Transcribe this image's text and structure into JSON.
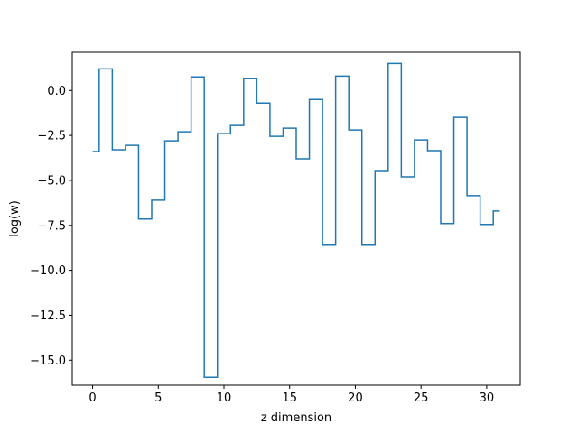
{
  "chart_data": {
    "type": "line",
    "drawstyle": "steps-mid",
    "title": "",
    "xlabel": "z dimension",
    "ylabel": "log(w)",
    "xlim": [
      -1.55,
      32.55
    ],
    "ylim": [
      -16.39,
      2.12
    ],
    "xticks": [
      0,
      5,
      10,
      15,
      20,
      25,
      30
    ],
    "xtick_labels": [
      "0",
      "5",
      "10",
      "15",
      "20",
      "25",
      "30"
    ],
    "yticks": [
      0.0,
      -2.5,
      -5.0,
      -7.5,
      -10.0,
      -12.5,
      -15.0
    ],
    "ytick_labels": [
      "0.0",
      "−2.5",
      "−5.0",
      "−7.5",
      "−10.0",
      "−12.5",
      "−15.0"
    ],
    "grid": false,
    "legend": "none",
    "series": [
      {
        "color": "#1f77b4",
        "x": [
          0,
          1,
          2,
          3,
          4,
          5,
          6,
          7,
          8,
          9,
          10,
          11,
          12,
          13,
          14,
          15,
          16,
          17,
          18,
          19,
          20,
          21,
          22,
          23,
          24,
          25,
          26,
          27,
          28,
          29,
          30,
          31
        ],
        "y": [
          -3.4,
          1.2,
          -3.3,
          -3.05,
          -7.15,
          -6.1,
          -2.8,
          -2.3,
          0.75,
          -15.95,
          -2.4,
          -1.95,
          0.65,
          -0.7,
          -2.55,
          -2.1,
          -3.8,
          -0.5,
          -8.6,
          0.8,
          -2.2,
          -8.6,
          -4.5,
          1.5,
          -4.8,
          -2.75,
          -3.35,
          -7.4,
          -1.5,
          -5.85,
          -7.45,
          -6.7
        ]
      }
    ]
  }
}
